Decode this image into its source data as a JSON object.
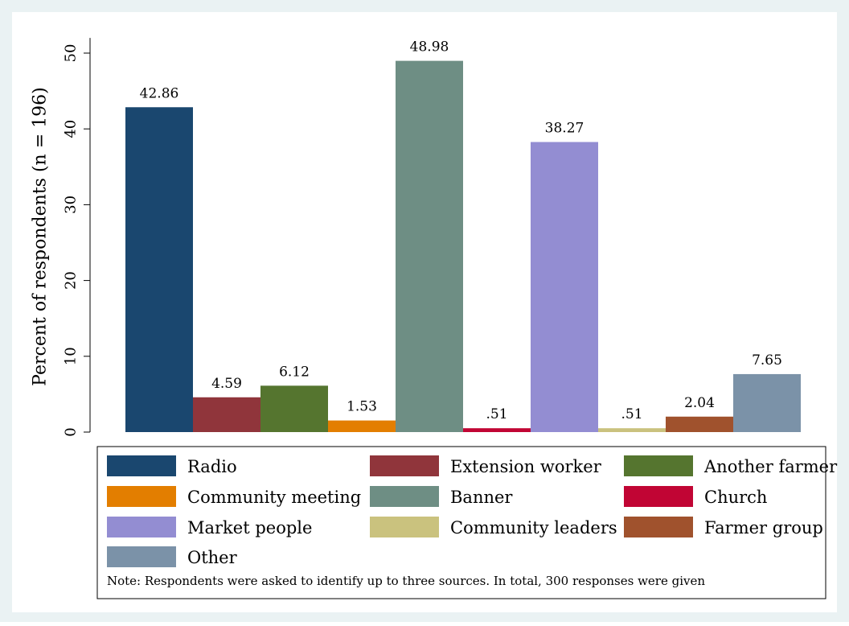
{
  "chart_data": {
    "type": "bar",
    "title": "",
    "xlabel": "",
    "ylabel": "Percent of respondents (n = 196)",
    "ylim": [
      0,
      52
    ],
    "yticks": [
      0,
      10,
      20,
      30,
      40,
      50
    ],
    "grid": false,
    "legend_position": "bottom",
    "series": [
      {
        "name": "Radio",
        "value": 42.86,
        "label": "42.86",
        "color": "#1a476f"
      },
      {
        "name": "Extension worker",
        "value": 4.59,
        "label": "4.59",
        "color": "#90353b"
      },
      {
        "name": "Another farmer",
        "value": 6.12,
        "label": "6.12",
        "color": "#55752f"
      },
      {
        "name": "Community meeting",
        "value": 1.53,
        "label": "1.53",
        "color": "#e37e00"
      },
      {
        "name": "Banner",
        "value": 48.98,
        "label": "48.98",
        "color": "#6e8e84"
      },
      {
        "name": "Church",
        "value": 0.51,
        "label": ".51",
        "color": "#c10534"
      },
      {
        "name": "Market people",
        "value": 38.27,
        "label": "38.27",
        "color": "#938dd2"
      },
      {
        "name": "Community leaders",
        "value": 0.51,
        "label": ".51",
        "color": "#cac27e"
      },
      {
        "name": "Farmer group",
        "value": 2.04,
        "label": "2.04",
        "color": "#a0522d"
      },
      {
        "name": "Other",
        "value": 7.65,
        "label": "7.65",
        "color": "#7b92a8"
      }
    ],
    "note": "Note: Respondents were asked to identify up to three sources. In total, 300 responses were given"
  },
  "colors": {
    "outer_background": "#eaf2f3",
    "plot_background": "#ffffff"
  }
}
